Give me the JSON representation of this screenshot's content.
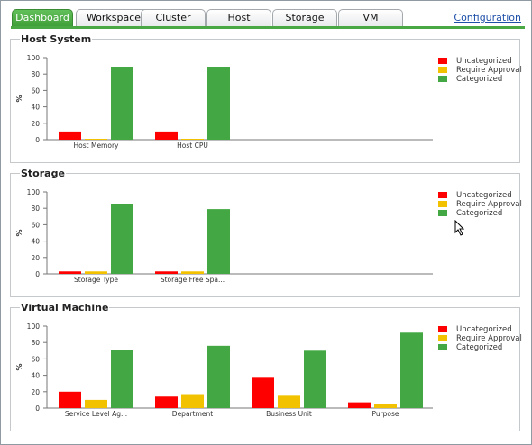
{
  "tabs": [
    {
      "label": "Dashboard",
      "active": true
    },
    {
      "label": "Workspace",
      "active": false
    },
    {
      "label": "Cluster",
      "active": false
    },
    {
      "label": "Host",
      "active": false
    },
    {
      "label": "Storage",
      "active": false
    },
    {
      "label": "VM",
      "active": false
    }
  ],
  "config_link": "Configuration",
  "colors": {
    "uncategorized": "#ff0000",
    "require_approval": "#f2c200",
    "categorized": "#43a843",
    "accent": "#49a843"
  },
  "legend": [
    "Uncategorized",
    "Require Approval",
    "Categorized"
  ],
  "panels": [
    {
      "title": "Host System"
    },
    {
      "title": "Storage"
    },
    {
      "title": "Virtual Machine"
    }
  ],
  "chart_data": [
    {
      "type": "bar",
      "title": "Host System",
      "ylabel": "%",
      "ylim": [
        0,
        100
      ],
      "yticks": [
        0,
        20,
        40,
        60,
        80,
        100
      ],
      "categories": [
        "Host Memory",
        "Host CPU"
      ],
      "series": [
        {
          "name": "Uncategorized",
          "values": [
            10,
            10
          ]
        },
        {
          "name": "Require Approval",
          "values": [
            1,
            1
          ]
        },
        {
          "name": "Categorized",
          "values": [
            89,
            89
          ]
        }
      ],
      "legend_position": "top-right",
      "slots": 4
    },
    {
      "type": "bar",
      "title": "Storage",
      "ylabel": "%",
      "ylim": [
        0,
        100
      ],
      "yticks": [
        0,
        20,
        40,
        60,
        80,
        100
      ],
      "categories": [
        "Storage Type",
        "Storage Free Spa..."
      ],
      "series": [
        {
          "name": "Uncategorized",
          "values": [
            3,
            3
          ]
        },
        {
          "name": "Require Approval",
          "values": [
            3,
            3
          ]
        },
        {
          "name": "Categorized",
          "values": [
            85,
            79
          ]
        }
      ],
      "legend_position": "top-right",
      "slots": 4
    },
    {
      "type": "bar",
      "title": "Virtual Machine",
      "ylabel": "%",
      "ylim": [
        0,
        100
      ],
      "yticks": [
        0,
        20,
        40,
        60,
        80,
        100
      ],
      "categories": [
        "Service Level Ag...",
        "Department",
        "Business Unit",
        "Purpose"
      ],
      "series": [
        {
          "name": "Uncategorized",
          "values": [
            20,
            14,
            37,
            7
          ]
        },
        {
          "name": "Require Approval",
          "values": [
            10,
            17,
            15,
            5
          ]
        },
        {
          "name": "Categorized",
          "values": [
            71,
            76,
            70,
            92
          ]
        }
      ],
      "legend_position": "top-right",
      "slots": 4
    }
  ]
}
